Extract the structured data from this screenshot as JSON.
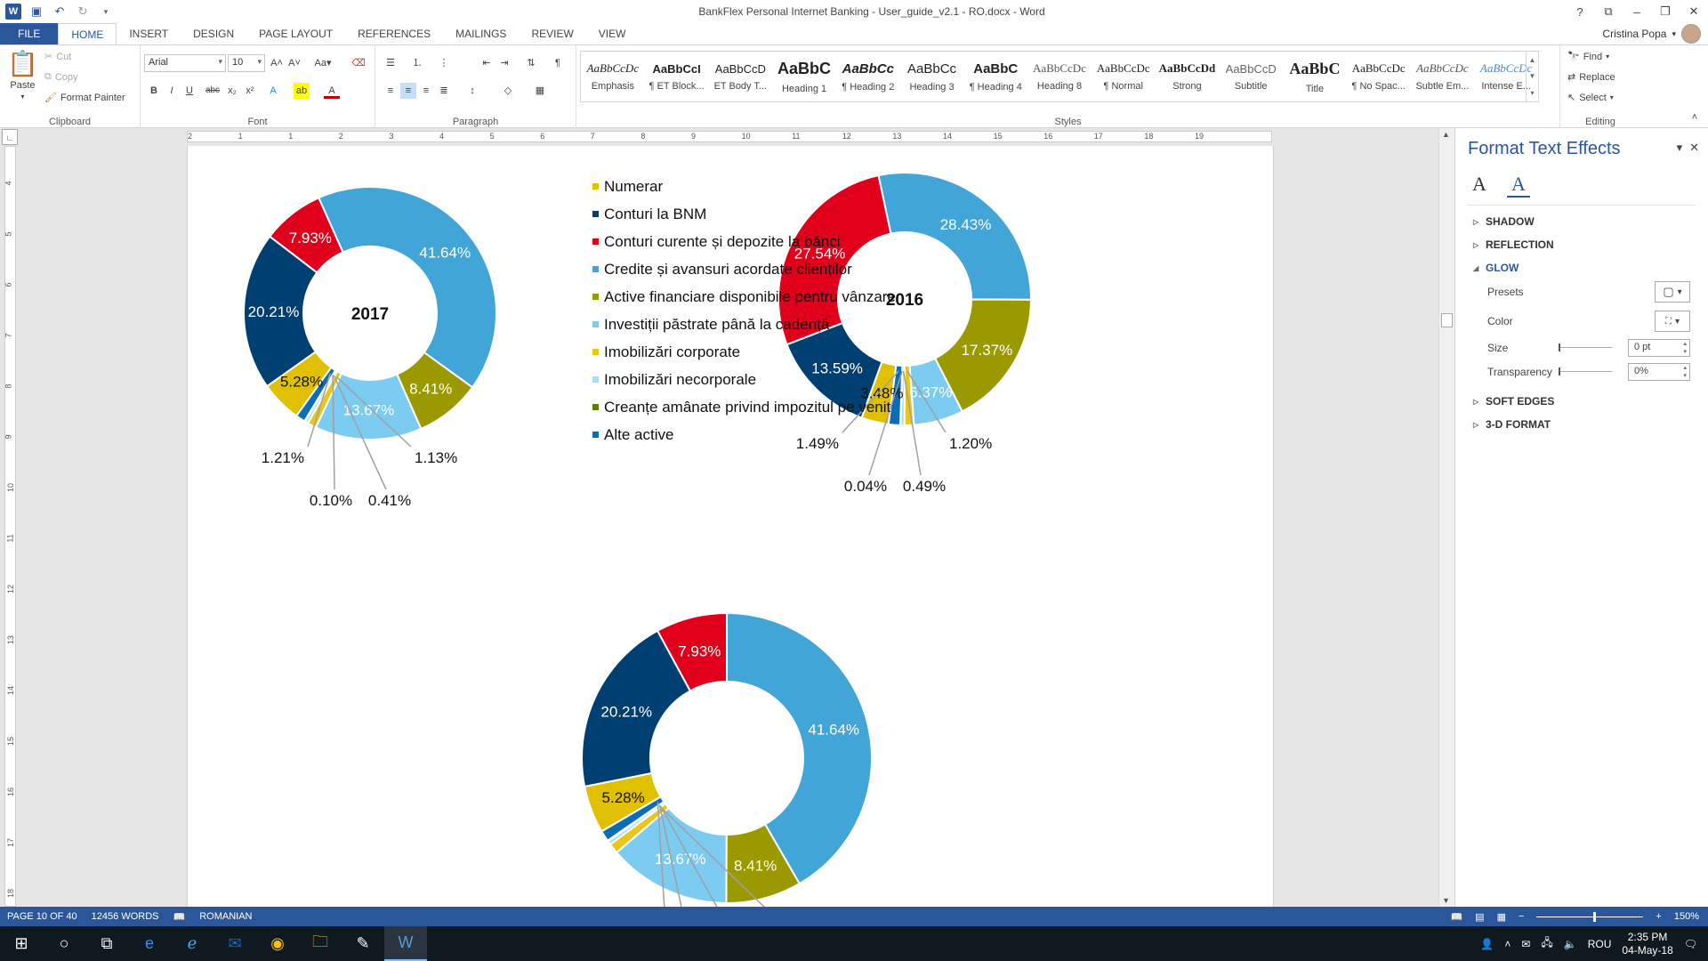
{
  "window": {
    "title": "BankFlex Personal Internet Banking - User_guide_v2.1 - RO.docx - Word",
    "user": "Cristina Popa",
    "controls": [
      "?",
      "⧉",
      "–",
      "❐",
      "✕"
    ]
  },
  "tabs": [
    "FILE",
    "HOME",
    "INSERT",
    "DESIGN",
    "PAGE LAYOUT",
    "REFERENCES",
    "MAILINGS",
    "REVIEW",
    "VIEW"
  ],
  "ribbon": {
    "clipboard": {
      "label": "Clipboard",
      "paste": "Paste",
      "cut": "Cut",
      "copy": "Copy",
      "format_painter": "Format Painter"
    },
    "font": {
      "label": "Font",
      "name": "Arial",
      "size": "10"
    },
    "paragraph": {
      "label": "Paragraph"
    },
    "styles": {
      "label": "Styles",
      "items": [
        {
          "preview": "AaBbCcDc",
          "name": "Emphasis"
        },
        {
          "preview": "AaBbCcI",
          "name": "¶ ET Block..."
        },
        {
          "preview": "AaBbCcD",
          "name": "ET Body T..."
        },
        {
          "preview": "AaBbC",
          "name": "Heading 1"
        },
        {
          "preview": "AaBbCc",
          "name": "¶ Heading 2"
        },
        {
          "preview": "AaBbCc",
          "name": "Heading 3"
        },
        {
          "preview": "AaBbC",
          "name": "¶ Heading 4"
        },
        {
          "preview": "AaBbCcDc",
          "name": "Heading 8"
        },
        {
          "preview": "AaBbCcDc",
          "name": "¶ Normal"
        },
        {
          "preview": "AaBbCcDd",
          "name": "Strong"
        },
        {
          "preview": "AaBbCcD",
          "name": "Subtitle"
        },
        {
          "preview": "AaBbC",
          "name": "Title"
        },
        {
          "preview": "AaBbCcDc",
          "name": "¶ No Spac..."
        },
        {
          "preview": "AaBbCcDc",
          "name": "Subtle Em..."
        },
        {
          "preview": "AaBbCcDc",
          "name": "Intense E..."
        }
      ]
    },
    "editing": {
      "label": "Editing",
      "find": "Find",
      "replace": "Replace",
      "select": "Select"
    }
  },
  "ruler": {
    "h": [
      "2",
      "1",
      "1",
      "2",
      "3",
      "4",
      "5",
      "6",
      "7",
      "8",
      "9",
      "10",
      "11",
      "12",
      "13",
      "14",
      "15",
      "16",
      "17",
      "18",
      "19"
    ],
    "v": [
      "4",
      "5",
      "6",
      "7",
      "8",
      "9",
      "10",
      "11",
      "12",
      "13",
      "14",
      "15",
      "16",
      "17",
      "18"
    ]
  },
  "legend": [
    {
      "label": "Numerar",
      "color": "#e0c000"
    },
    {
      "label": "Conturi la BNM",
      "color": "#003f72"
    },
    {
      "label": "Conturi curente și depozite la bănci",
      "color": "#e0001b"
    },
    {
      "label": "Credite și avansuri acordate clienților",
      "color": "#41a5d8"
    },
    {
      "label": "Active financiare disponibile pentru vânzare",
      "color": "#9a9a00"
    },
    {
      "label": "Investiții păstrate până la cadență",
      "color": "#7ccbf0"
    },
    {
      "label": "Imobilizări corporate",
      "color": "#e8c71a"
    },
    {
      "label": "Imobilizări necorporale",
      "color": "#a8dcf5"
    },
    {
      "label": "Creanțe amânate privind impozitul pe venit",
      "color": "#5a7d00"
    },
    {
      "label": "Alte active",
      "color": "#0b6db4"
    }
  ],
  "chart_data": [
    {
      "type": "pie",
      "donut": true,
      "title": "2017",
      "categories": [
        "Numerar",
        "Conturi la BNM",
        "Conturi curente și depozite la bănci",
        "Credite și avansuri acordate clienților",
        "Active financiare disponibile pentru vânzare",
        "Investiții păstrate până la cadență",
        "Imobilizări corporate",
        "Imobilizări necorporale",
        "Creanțe amânate privind impozitul pe venit",
        "Alte active"
      ],
      "values": [
        5.28,
        20.21,
        7.93,
        41.64,
        8.41,
        13.67,
        1.13,
        0.41,
        0.1,
        1.21
      ],
      "labels": [
        "5.28%",
        "20.21%",
        "7.93%",
        "41.64%",
        "8.41%",
        "13.67%",
        "1.13%",
        "0.41%",
        "0.10%",
        "1.21%"
      ]
    },
    {
      "type": "pie",
      "donut": true,
      "title": "2016",
      "categories": [
        "Numerar",
        "Conturi la BNM",
        "Conturi curente și depozite la bănci",
        "Credite și avansuri acordate clienților",
        "Active financiare disponibile pentru vânzare",
        "Investiții păstrate până la cadență",
        "Imobilizări corporate",
        "Imobilizări necorporale",
        "Creanțe amânate privind impozitul pe venit",
        "Alte active"
      ],
      "values": [
        3.48,
        13.59,
        27.54,
        28.43,
        17.37,
        6.37,
        1.2,
        0.49,
        0.04,
        1.49
      ],
      "labels": [
        "3.48%",
        "13.59%",
        "27.54%",
        "28.43%",
        "17.37%",
        "6.37%",
        "1.20%",
        "0.49%",
        "0.04%",
        "1.49%"
      ]
    },
    {
      "type": "pie",
      "donut": true,
      "title": "",
      "categories": [
        "Numerar",
        "Conturi la BNM",
        "Conturi curente și depozite la bănci",
        "Credite și avansuri acordate clienților",
        "Active financiare disponibile pentru vânzare",
        "Investiții păstrate până la cadență",
        "Imobilizări corporate",
        "Imobilizări necorporale",
        "Creanțe amânate privind impozitul pe venit",
        "Alte active"
      ],
      "values": [
        5.28,
        20.21,
        7.93,
        41.64,
        8.41,
        13.67,
        1.13,
        0.41,
        0.1,
        1.21
      ],
      "labels": [
        "5.28%",
        "20.21%",
        "7.93%",
        "41.64%",
        "8.41%",
        "13.67%",
        "",
        "",
        "",
        ""
      ]
    }
  ],
  "taskpane": {
    "title": "Format Text Effects",
    "sections": {
      "shadow": "SHADOW",
      "reflection": "REFLECTION",
      "glow": "GLOW",
      "soft_edges": "SOFT EDGES",
      "format3d": "3-D FORMAT"
    },
    "glow": {
      "presets": "Presets",
      "color": "Color",
      "size": "Size",
      "size_value": "0 pt",
      "transparency": "Transparency",
      "transparency_value": "0%"
    }
  },
  "status": {
    "page": "PAGE 10 OF 40",
    "words": "12456 WORDS",
    "language": "ROMANIAN",
    "zoom": "150%"
  },
  "taskbar": {
    "lang": "ROU",
    "time": "2:35 PM",
    "date": "04-May-18"
  }
}
